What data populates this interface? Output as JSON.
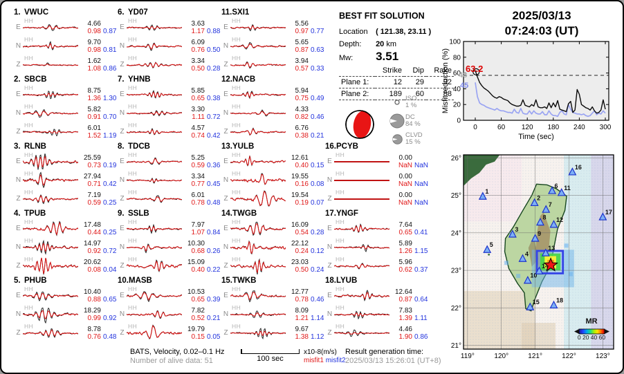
{
  "header": {
    "date": "2025/03/13",
    "time": "07:24:03  (UT)"
  },
  "solution": {
    "title": "BEST FIT SOLUTION",
    "location_label": "Location",
    "location_value": "( 121.38,  23.11 )",
    "depth_label": "Depth:",
    "depth_value": "20",
    "depth_unit": "km",
    "mw_label": "Mw:",
    "mw_value": "3.51",
    "table": {
      "headers": [
        "Strike",
        "Dip",
        "Rake"
      ],
      "rows": [
        {
          "label": "Plane 1:",
          "strike": "12",
          "dip": "29",
          "rake": "92"
        },
        {
          "label": "Plane 2:",
          "strike": "189",
          "dip": "60",
          "rake": "88"
        }
      ]
    },
    "decomposition": [
      {
        "name": "ISO",
        "pct": "1 %"
      },
      {
        "name": "DC",
        "pct": "84 %"
      },
      {
        "name": "CLVD",
        "pct": "15 %"
      }
    ]
  },
  "chart_data": {
    "type": "line",
    "title": "",
    "xlabel": "Time (sec)",
    "ylabel": "Misfit reduction (%)",
    "xlim": [
      -20,
      300
    ],
    "ylim": [
      0,
      100
    ],
    "x_ticks": [
      0,
      60,
      120,
      180,
      240,
      300
    ],
    "y_ticks": [
      0,
      20,
      40,
      60,
      80,
      100
    ],
    "legend": "none",
    "grid": false,
    "annotations": {
      "best": "63.2",
      "gray_start": "48",
      "blue_start": "45",
      "dashed_y": 57
    },
    "series": [
      {
        "name": "secondary-misfit-reduction",
        "color": "#9aa4f2",
        "width": 1.7,
        "x_start": 0,
        "x_step": 5,
        "values": [
          48,
          30,
          22,
          20,
          19,
          17,
          16,
          15,
          14,
          13,
          15,
          13,
          12,
          12,
          11,
          10,
          10,
          9,
          14,
          10,
          9,
          15,
          9,
          8,
          8,
          12,
          8,
          12,
          9,
          8,
          8,
          11,
          7,
          7,
          12,
          8,
          6,
          6,
          5,
          10,
          12,
          8,
          7,
          20,
          14,
          10,
          9,
          8,
          8,
          7,
          8,
          6,
          5,
          6,
          9,
          12,
          7,
          9,
          8,
          12,
          9
        ]
      },
      {
        "name": "best-misfit-reduction",
        "color": "#0a0a0a",
        "width": 1.4,
        "x_start": 0,
        "x_step": 5,
        "values": [
          63.2,
          55,
          48,
          44,
          41,
          39,
          37,
          34,
          31,
          29,
          28,
          30,
          29,
          27,
          26,
          25,
          22,
          20,
          19,
          18,
          18,
          19,
          26,
          19,
          18,
          17,
          20,
          18,
          26,
          17,
          16,
          16,
          17,
          15,
          22,
          16,
          22,
          17,
          25,
          14,
          13,
          12,
          11,
          21,
          24,
          10,
          13,
          39,
          33,
          20,
          18,
          16,
          15,
          13,
          17,
          12,
          9,
          10,
          13,
          26,
          14
        ]
      }
    ]
  },
  "stations": [
    {
      "num": "1.",
      "code": "VWUC",
      "channel": "HH",
      "components": [
        {
          "comp": "E",
          "amp": "4.66",
          "m1": "0.98",
          "m2": "0.87"
        },
        {
          "comp": "N",
          "amp": "9.70",
          "m1": "0.98",
          "m2": "0.81"
        },
        {
          "comp": "Z",
          "amp": "1.62",
          "m1": "1.08",
          "m2": "0.86"
        }
      ]
    },
    {
      "num": "2.",
      "code": "SBCB",
      "channel": "HH",
      "components": [
        {
          "comp": "E",
          "amp": "8.75",
          "m1": "1.36",
          "m2": "1.30"
        },
        {
          "comp": "N",
          "amp": "5.82",
          "m1": "0.91",
          "m2": "0.70"
        },
        {
          "comp": "Z",
          "amp": "6.01",
          "m1": "1.52",
          "m2": "1.19"
        }
      ]
    },
    {
      "num": "3.",
      "code": "RLNB",
      "channel": "HH",
      "components": [
        {
          "comp": "E",
          "amp": "25.59",
          "m1": "0.73",
          "m2": "0.19"
        },
        {
          "comp": "N",
          "amp": "27.94",
          "m1": "0.71",
          "m2": "0.42"
        },
        {
          "comp": "Z",
          "amp": "7.19",
          "m1": "0.59",
          "m2": "0.25"
        }
      ]
    },
    {
      "num": "4.",
      "code": "TPUB",
      "channel": "HH",
      "components": [
        {
          "comp": "E",
          "amp": "17.48",
          "m1": "0.44",
          "m2": "0.25"
        },
        {
          "comp": "N",
          "amp": "14.97",
          "m1": "0.92",
          "m2": "0.72"
        },
        {
          "comp": "Z",
          "amp": "20.62",
          "m1": "0.08",
          "m2": "0.04"
        }
      ]
    },
    {
      "num": "5.",
      "code": "PHUB",
      "channel": "HH",
      "components": [
        {
          "comp": "E",
          "amp": "10.40",
          "m1": "0.88",
          "m2": "0.65"
        },
        {
          "comp": "N",
          "amp": "18.29",
          "m1": "0.99",
          "m2": "0.92"
        },
        {
          "comp": "Z",
          "amp": "8.78",
          "m1": "0.76",
          "m2": "0.48"
        }
      ]
    },
    {
      "num": "6.",
      "code": "YD07",
      "channel": "HH",
      "components": [
        {
          "comp": "E",
          "amp": "3.63",
          "m1": "1.17",
          "m2": "0.88"
        },
        {
          "comp": "N",
          "amp": "6.09",
          "m1": "0.76",
          "m2": "0.50"
        },
        {
          "comp": "Z",
          "amp": "3.34",
          "m1": "0.50",
          "m2": "0.28"
        }
      ]
    },
    {
      "num": "7.",
      "code": "YHNB",
      "channel": "HH",
      "components": [
        {
          "comp": "E",
          "amp": "5.85",
          "m1": "0.65",
          "m2": "0.38"
        },
        {
          "comp": "N",
          "amp": "3.30",
          "m1": "1.11",
          "m2": "0.72"
        },
        {
          "comp": "Z",
          "amp": "4.57",
          "m1": "0.74",
          "m2": "0.42"
        }
      ]
    },
    {
      "num": "8.",
      "code": "TDCB",
      "channel": "HH",
      "components": [
        {
          "comp": "E",
          "amp": "5.25",
          "m1": "0.59",
          "m2": "0.36"
        },
        {
          "comp": "N",
          "amp": "3.34",
          "m1": "0.77",
          "m2": "0.45"
        },
        {
          "comp": "Z",
          "amp": "6.01",
          "m1": "0.78",
          "m2": "0.48"
        }
      ]
    },
    {
      "num": "9.",
      "code": "SSLB",
      "channel": "HH",
      "components": [
        {
          "comp": "E",
          "amp": "7.97",
          "m1": "1.07",
          "m2": "0.84"
        },
        {
          "comp": "N",
          "amp": "10.30",
          "m1": "0.68",
          "m2": "0.26"
        },
        {
          "comp": "Z",
          "amp": "15.09",
          "m1": "0.40",
          "m2": "0.22"
        }
      ]
    },
    {
      "num": "10.",
      "code": "MASB",
      "channel": "HH",
      "components": [
        {
          "comp": "E",
          "amp": "10.53",
          "m1": "0.65",
          "m2": "0.39"
        },
        {
          "comp": "N",
          "amp": "7.82",
          "m1": "0.52",
          "m2": "0.21"
        },
        {
          "comp": "Z",
          "amp": "19.79",
          "m1": "0.15",
          "m2": "0.05"
        }
      ]
    },
    {
      "num": "11.",
      "code": "SXI1",
      "channel": "HH",
      "components": [
        {
          "comp": "E",
          "amp": "5.56",
          "m1": "0.97",
          "m2": "0.77"
        },
        {
          "comp": "N",
          "amp": "5.65",
          "m1": "0.87",
          "m2": "0.63"
        },
        {
          "comp": "Z",
          "amp": "3.94",
          "m1": "0.57",
          "m2": "0.33"
        }
      ]
    },
    {
      "num": "12.",
      "code": "NACB",
      "channel": "HH",
      "components": [
        {
          "comp": "E",
          "amp": "5.94",
          "m1": "0.75",
          "m2": "0.49"
        },
        {
          "comp": "N",
          "amp": "4.33",
          "m1": "0.82",
          "m2": "0.46"
        },
        {
          "comp": "Z",
          "amp": "6.76",
          "m1": "0.38",
          "m2": "0.21"
        }
      ]
    },
    {
      "num": "13.",
      "code": "YULB",
      "channel": "HH",
      "components": [
        {
          "comp": "E",
          "amp": "12.61",
          "m1": "0.40",
          "m2": "0.15"
        },
        {
          "comp": "N",
          "amp": "19.55",
          "m1": "0.16",
          "m2": "0.08"
        },
        {
          "comp": "Z",
          "amp": "19.54",
          "m1": "0.19",
          "m2": "0.07"
        }
      ]
    },
    {
      "num": "14.",
      "code": "TWGB",
      "channel": "HH",
      "components": [
        {
          "comp": "E",
          "amp": "16.09",
          "m1": "0.54",
          "m2": "0.28"
        },
        {
          "comp": "N",
          "amp": "22.12",
          "m1": "0.24",
          "m2": "0.12"
        },
        {
          "comp": "Z",
          "amp": "23.03",
          "m1": "0.50",
          "m2": "0.24"
        }
      ]
    },
    {
      "num": "15.",
      "code": "TWKB",
      "channel": "HH",
      "components": [
        {
          "comp": "E",
          "amp": "12.77",
          "m1": "0.78",
          "m2": "0.46"
        },
        {
          "comp": "N",
          "amp": "8.09",
          "m1": "1.21",
          "m2": "1.14"
        },
        {
          "comp": "Z",
          "amp": "9.67",
          "m1": "1.38",
          "m2": "1.12"
        }
      ]
    },
    {
      "num": "16.",
      "code": "PCYB",
      "channel": "HH",
      "components": [
        {
          "comp": "E",
          "amp": "0.00",
          "m1": "NaN",
          "m2": "NaN"
        },
        {
          "comp": "N",
          "amp": "0.00",
          "m1": "NaN",
          "m2": "NaN"
        },
        {
          "comp": "Z",
          "amp": "0.00",
          "m1": "NaN",
          "m2": "NaN"
        }
      ]
    },
    {
      "num": "17.",
      "code": "YNGF",
      "channel": "HH",
      "components": [
        {
          "comp": "E",
          "amp": "7.64",
          "m1": "0.65",
          "m2": "0.41"
        },
        {
          "comp": "N",
          "amp": "5.89",
          "m1": "1.26",
          "m2": "1.15"
        },
        {
          "comp": "Z",
          "amp": "5.96",
          "m1": "0.62",
          "m2": "0.37"
        }
      ]
    },
    {
      "num": "18.",
      "code": "LYUB",
      "channel": "HH",
      "components": [
        {
          "comp": "E",
          "amp": "12.64",
          "m1": "0.87",
          "m2": "0.64"
        },
        {
          "comp": "N",
          "amp": "7.83",
          "m1": "1.39",
          "m2": "1.11"
        },
        {
          "comp": "Z",
          "amp": "4.46",
          "m1": "1.90",
          "m2": "0.86"
        }
      ]
    }
  ],
  "map": {
    "lon_ticks": [
      {
        "v": 119,
        "label": "119°"
      },
      {
        "v": 120,
        "label": "120°"
      },
      {
        "v": 121,
        "label": "121°"
      },
      {
        "v": 122,
        "label": "122°"
      },
      {
        "v": 123,
        "label": "123°"
      }
    ],
    "lat_ticks": [
      {
        "v": 21,
        "label": "21°"
      },
      {
        "v": 22,
        "label": "22°"
      },
      {
        "v": 23,
        "label": "23°"
      },
      {
        "v": 24,
        "label": "24°"
      },
      {
        "v": 25,
        "label": "25°"
      },
      {
        "v": 26,
        "label": "26°"
      }
    ],
    "stations": [
      {
        "n": "1",
        "lon": 119.45,
        "lat": 24.97
      },
      {
        "n": "2",
        "lon": 120.98,
        "lat": 24.8
      },
      {
        "n": "3",
        "lon": 120.33,
        "lat": 23.96
      },
      {
        "n": "4",
        "lon": 120.63,
        "lat": 23.31
      },
      {
        "n": "5",
        "lon": 119.58,
        "lat": 23.55
      },
      {
        "n": "6",
        "lon": 121.5,
        "lat": 25.12
      },
      {
        "n": "7",
        "lon": 121.32,
        "lat": 24.62
      },
      {
        "n": "8",
        "lon": 121.15,
        "lat": 24.28
      },
      {
        "n": "9",
        "lon": 121.0,
        "lat": 23.85
      },
      {
        "n": "10",
        "lon": 120.78,
        "lat": 22.73
      },
      {
        "n": "11",
        "lon": 121.78,
        "lat": 25.07
      },
      {
        "n": "12",
        "lon": 121.55,
        "lat": 24.22
      },
      {
        "n": "13",
        "lon": 121.31,
        "lat": 23.46
      },
      {
        "n": "14",
        "lon": 121.12,
        "lat": 22.98
      },
      {
        "n": "15",
        "lon": 120.85,
        "lat": 22.02
      },
      {
        "n": "16",
        "lon": 122.1,
        "lat": 25.62
      },
      {
        "n": "17",
        "lon": 123.0,
        "lat": 24.42
      },
      {
        "n": "18",
        "lon": 121.55,
        "lat": 22.07
      }
    ],
    "epicenter": {
      "lon": 121.46,
      "lat": 23.14
    },
    "search_box": {
      "lon0": 121.05,
      "lat0": 22.92,
      "lon1": 121.82,
      "lat1": 23.52
    },
    "colorbar": {
      "title": "MR",
      "ticks": "0 20 40 60"
    }
  },
  "footer": {
    "source": "BATS, Velocity, 0.02–0.1 Hz",
    "alive": "Number of alive data: 51",
    "scalebar": "100 sec",
    "amp_unit": "x10-8(m/s)",
    "legend1": "misfit1",
    "legend2": "misfit2",
    "result_label": "Result generation time:",
    "result_time": "2025/03/13 15:26:01 (UT+8)"
  }
}
